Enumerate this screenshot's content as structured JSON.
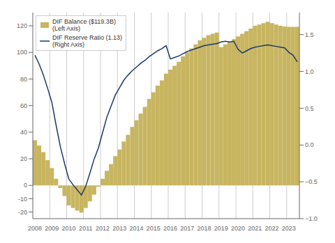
{
  "chart_data": {
    "type": "bar",
    "categories": [
      "2008",
      null,
      null,
      null,
      "2009",
      null,
      null,
      null,
      "2010",
      null,
      null,
      null,
      "2011",
      null,
      null,
      null,
      "2012",
      null,
      null,
      null,
      "2013",
      null,
      null,
      null,
      "2014",
      null,
      null,
      null,
      "2015",
      null,
      null,
      null,
      "2016",
      null,
      null,
      null,
      "2017",
      null,
      null,
      null,
      "2018",
      null,
      null,
      null,
      "2019",
      null,
      null,
      null,
      "2020",
      null,
      null,
      null,
      "2021",
      null,
      null,
      null,
      "2022",
      null,
      null,
      null,
      "2023",
      null,
      null
    ],
    "series": [
      {
        "name": "DIF Balance ($119.3B)\n(Left Axis)",
        "type": "bar",
        "color": "#C8B560",
        "values": [
          34.0,
          30.0,
          25.0,
          19.0,
          13.0,
          5.0,
          -2.0,
          -8.0,
          -15.0,
          -17.0,
          -19.0,
          -20.5,
          -17.0,
          -12.0,
          -7.0,
          -1.0,
          5.0,
          11.0,
          16.0,
          22.0,
          27.0,
          33.0,
          38.0,
          44.0,
          49.0,
          54.0,
          59.0,
          65.0,
          70.0,
          75.0,
          79.0,
          84.0,
          87.0,
          90.0,
          93.0,
          97.0,
          100.0,
          103.0,
          106.0,
          109.0,
          111.0,
          113.0,
          114.0,
          115.0,
          104.0,
          106.0,
          108.0,
          110.0,
          112.0,
          114.0,
          116.0,
          118.0,
          120.0,
          121.0,
          122.0,
          123.0,
          122.0,
          121.0,
          120.0,
          119.5,
          119.3,
          119.3,
          119.3
        ]
      },
      {
        "name": "DIF Reserve Ratio (1.13)\n(Right Axis)",
        "type": "line",
        "color": "#1B3A6B",
        "axis": "y2",
        "values": [
          1.22,
          1.1,
          0.95,
          0.77,
          0.58,
          0.27,
          -0.02,
          -0.25,
          -0.46,
          -0.54,
          -0.61,
          -0.68,
          -0.56,
          -0.38,
          -0.19,
          -0.04,
          0.17,
          0.38,
          0.53,
          0.68,
          0.78,
          0.88,
          0.95,
          1.01,
          1.06,
          1.11,
          1.15,
          1.2,
          1.24,
          1.28,
          1.31,
          1.35,
          1.17,
          1.19,
          1.21,
          1.24,
          1.27,
          1.29,
          1.31,
          1.33,
          1.35,
          1.36,
          1.37,
          1.38,
          1.4,
          1.41,
          1.4,
          1.41,
          1.3,
          1.25,
          1.28,
          1.31,
          1.33,
          1.34,
          1.35,
          1.36,
          1.35,
          1.34,
          1.33,
          1.32,
          1.26,
          1.22,
          1.13
        ]
      }
    ],
    "ylim": [
      -25,
      130
    ],
    "yticks": [
      -20,
      -10,
      0,
      20,
      40,
      60,
      80,
      100,
      120
    ],
    "y2lim": [
      -1.0,
      1.8
    ],
    "y2ticks": [
      {
        "value": -1.0,
        "label": "−1.0"
      },
      {
        "value": -0.5,
        "label": "−0.5"
      },
      {
        "value": 0.0,
        "label": "0.0"
      },
      {
        "value": 0.5,
        "label": "0.5"
      },
      {
        "value": 1.0,
        "label": "1.0"
      },
      {
        "value": 1.5,
        "label": "1.5"
      }
    ],
    "grid": "x",
    "legend": "upper left"
  }
}
